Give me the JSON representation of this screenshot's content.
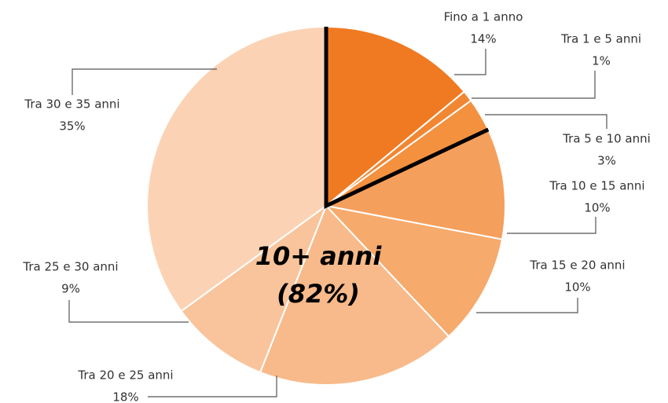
{
  "chart_data": {
    "type": "pie",
    "categories": [
      "Fino a 1 anno",
      "Tra 1 e 5 anni",
      "Tra 5 e 10 anni",
      "Tra 10 e 15 anni",
      "Tra 15 e 20 anni",
      "Tra 20 e 25 anni",
      "Tra 25 e 30 anni",
      "Tra 30 e 35 anni"
    ],
    "values": [
      14,
      1,
      3,
      10,
      10,
      18,
      9,
      35
    ],
    "value_labels": [
      "14%",
      "1%",
      "3%",
      "10%",
      "10%",
      "18%",
      "9%",
      "35%"
    ],
    "colors": [
      "#f07a22",
      "#f28733",
      "#f3913f",
      "#f59f5c",
      "#f6aa6c",
      "#f8ba8a",
      "#f9c49c",
      "#fbd3b4"
    ],
    "annotation": [
      "10+ anni",
      "(82%)"
    ]
  }
}
